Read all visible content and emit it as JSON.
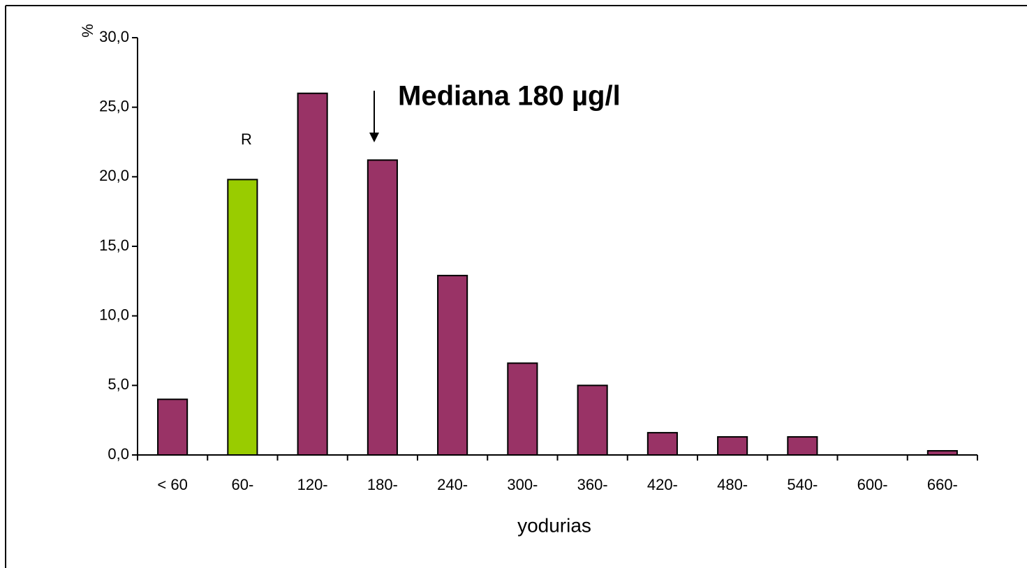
{
  "chart_data": {
    "type": "bar",
    "categories": [
      "< 60",
      "60-",
      "120-",
      "180-",
      "240-",
      "300-",
      "360-",
      "420-",
      "480-",
      "540-",
      "600-",
      "660-"
    ],
    "values": [
      4.0,
      19.8,
      26.0,
      21.2,
      12.9,
      6.6,
      5.0,
      1.6,
      1.3,
      1.3,
      0,
      0.3
    ],
    "colors": [
      "#993366",
      "#99cc00",
      "#993366",
      "#993366",
      "#993366",
      "#993366",
      "#993366",
      "#993366",
      "#993366",
      "#993366",
      "#993366",
      "#993366"
    ],
    "ylim": [
      0,
      30
    ],
    "yticks": [
      {
        "value": 0,
        "label": "0,0"
      },
      {
        "value": 5,
        "label": "5,0"
      },
      {
        "value": 10,
        "label": "10,0"
      },
      {
        "value": 15,
        "label": "15,0"
      },
      {
        "value": 20,
        "label": "20,0"
      },
      {
        "value": 25,
        "label": "25,0"
      },
      {
        "value": 30,
        "label": "30,0"
      }
    ],
    "y_label": "%",
    "x_label": "yodurias",
    "annotations": [
      "R",
      "Mediana 180 µg/l"
    ],
    "grid": false
  }
}
